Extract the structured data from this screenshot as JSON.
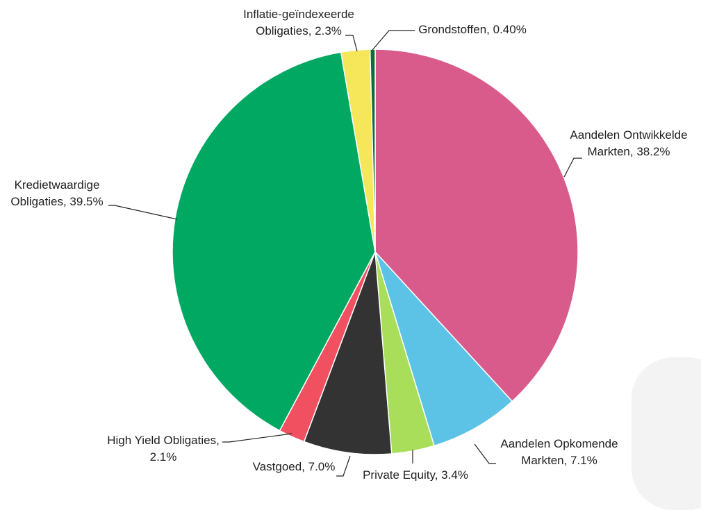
{
  "chart_data": {
    "type": "pie",
    "title": "",
    "start_angle_deg": 0,
    "direction": "clockwise",
    "slices": [
      {
        "label": "Aandelen Ontwikkelde Markten",
        "value": 38.2,
        "display": [
          "Aandelen Ontwikkelde",
          "Markten, 38.2%"
        ],
        "color": "#D95B8C"
      },
      {
        "label": "Aandelen Opkomende Markten",
        "value": 7.1,
        "display": [
          "Aandelen Opkomende",
          "Markten, 7.1%"
        ],
        "color": "#5CC3E6"
      },
      {
        "label": "Private Equity",
        "value": 3.4,
        "display": [
          "Private Equity, 3.4%"
        ],
        "color": "#A9DE5A"
      },
      {
        "label": "Vastgoed",
        "value": 7.0,
        "display": [
          "Vastgoed, 7.0%"
        ],
        "color": "#333333"
      },
      {
        "label": "High Yield Obligaties",
        "value": 2.1,
        "display": [
          "High Yield Obligaties,",
          "2.1%"
        ],
        "color": "#F05060"
      },
      {
        "label": "Kredietwaardige Obligaties",
        "value": 39.5,
        "display": [
          "Kredietwaardige",
          "Obligaties, 39.5%"
        ],
        "color": "#00A862"
      },
      {
        "label": "Inflatie-geïndexeerde Obligaties",
        "value": 2.3,
        "display": [
          "Inflatie-geïndexeerde",
          "Obligaties, 2.3%"
        ],
        "color": "#F5E65A"
      },
      {
        "label": "Grondstoffen",
        "value": 0.4,
        "display": [
          "Grondstoffen, 0.40%"
        ],
        "color": "#0E6B3D"
      }
    ]
  }
}
